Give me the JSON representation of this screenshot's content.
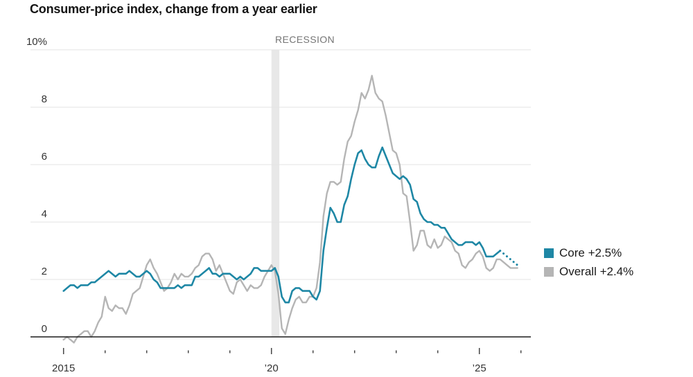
{
  "title": "Consumer-price index, change from a year earlier",
  "chart_data": {
    "type": "line",
    "title": "Consumer-price index, change from a year earlier",
    "x_start_year": 2015,
    "x_interval": "monthly",
    "ylim": [
      -0.3,
      10
    ],
    "grid": true,
    "legend_position": "right",
    "yticks": [
      {
        "value": 10,
        "label": "10%"
      },
      {
        "value": 8,
        "label": "8"
      },
      {
        "value": 6,
        "label": "6"
      },
      {
        "value": 4,
        "label": "4"
      },
      {
        "value": 2,
        "label": "2"
      },
      {
        "value": 0,
        "label": "0"
      }
    ],
    "xticks": [
      {
        "year": 2015,
        "label": "2015"
      },
      {
        "year": 2016
      },
      {
        "year": 2017
      },
      {
        "year": 2018
      },
      {
        "year": 2019
      },
      {
        "year": 2020,
        "label": "’20"
      },
      {
        "year": 2021
      },
      {
        "year": 2022
      },
      {
        "year": 2023
      },
      {
        "year": 2024
      },
      {
        "year": 2025,
        "label": "’25"
      },
      {
        "year": 2026
      }
    ],
    "recession_band": {
      "label": "RECESSION",
      "from_year": 2020.0,
      "to_year": 2020.19
    },
    "colors": {
      "grid": "#e3e3e3",
      "axis": "#1a1a1a",
      "band": "#e8e8e8",
      "tick": "#444444",
      "tick_label": "#333333"
    },
    "series": [
      {
        "name": "Core",
        "legend_label": "Core +2.5%",
        "color": "#1e87a5",
        "dash_from_index": 126,
        "values": [
          1.6,
          1.7,
          1.8,
          1.8,
          1.7,
          1.8,
          1.8,
          1.8,
          1.9,
          1.9,
          2.0,
          2.1,
          2.2,
          2.3,
          2.2,
          2.1,
          2.2,
          2.2,
          2.2,
          2.3,
          2.2,
          2.1,
          2.1,
          2.2,
          2.3,
          2.2,
          2.0,
          1.9,
          1.7,
          1.7,
          1.7,
          1.7,
          1.7,
          1.8,
          1.7,
          1.8,
          1.8,
          1.8,
          2.1,
          2.1,
          2.2,
          2.3,
          2.4,
          2.2,
          2.2,
          2.1,
          2.2,
          2.2,
          2.2,
          2.1,
          2.0,
          2.1,
          2.0,
          2.1,
          2.2,
          2.4,
          2.4,
          2.3,
          2.3,
          2.3,
          2.3,
          2.4,
          2.1,
          1.4,
          1.2,
          1.2,
          1.6,
          1.7,
          1.7,
          1.6,
          1.6,
          1.6,
          1.4,
          1.3,
          1.6,
          3.0,
          3.8,
          4.5,
          4.3,
          4.0,
          4.0,
          4.6,
          4.9,
          5.5,
          6.0,
          6.4,
          6.5,
          6.2,
          6.0,
          5.9,
          5.9,
          6.3,
          6.6,
          6.3,
          6.0,
          5.7,
          5.6,
          5.5,
          5.6,
          5.5,
          5.3,
          4.8,
          4.7,
          4.3,
          4.1,
          4.0,
          4.0,
          3.9,
          3.9,
          3.8,
          3.8,
          3.6,
          3.4,
          3.3,
          3.2,
          3.2,
          3.3,
          3.3,
          3.3,
          3.2,
          3.3,
          3.1,
          2.8,
          2.8,
          2.8,
          2.9,
          3.0,
          2.9,
          2.8,
          2.7,
          2.6,
          2.5
        ]
      },
      {
        "name": "Overall",
        "legend_label": "Overall +2.4%",
        "color": "#b5b5b5",
        "values": [
          -0.1,
          0.0,
          -0.1,
          -0.2,
          0.0,
          0.1,
          0.2,
          0.2,
          0.0,
          0.2,
          0.5,
          0.7,
          1.4,
          1.0,
          0.9,
          1.1,
          1.0,
          1.0,
          0.8,
          1.1,
          1.5,
          1.6,
          1.7,
          2.1,
          2.5,
          2.7,
          2.4,
          2.2,
          1.9,
          1.6,
          1.7,
          1.9,
          2.2,
          2.0,
          2.2,
          2.1,
          2.1,
          2.2,
          2.4,
          2.5,
          2.8,
          2.9,
          2.9,
          2.7,
          2.3,
          2.5,
          2.2,
          1.9,
          1.6,
          1.5,
          1.9,
          2.0,
          1.8,
          1.6,
          1.8,
          1.7,
          1.7,
          1.8,
          2.1,
          2.3,
          2.5,
          2.3,
          1.5,
          0.3,
          0.1,
          0.6,
          1.0,
          1.3,
          1.4,
          1.2,
          1.2,
          1.4,
          1.4,
          1.7,
          2.6,
          4.2,
          5.0,
          5.4,
          5.4,
          5.3,
          5.4,
          6.2,
          6.8,
          7.0,
          7.5,
          7.9,
          8.5,
          8.3,
          8.6,
          9.1,
          8.5,
          8.3,
          8.2,
          7.7,
          7.1,
          6.5,
          6.4,
          6.0,
          5.0,
          4.9,
          4.0,
          3.0,
          3.2,
          3.7,
          3.7,
          3.2,
          3.1,
          3.4,
          3.1,
          3.2,
          3.5,
          3.4,
          3.3,
          3.0,
          2.9,
          2.5,
          2.4,
          2.6,
          2.7,
          2.9,
          3.0,
          2.8,
          2.4,
          2.3,
          2.4,
          2.7,
          2.7,
          2.6,
          2.5,
          2.4,
          2.4,
          2.4
        ]
      }
    ]
  }
}
